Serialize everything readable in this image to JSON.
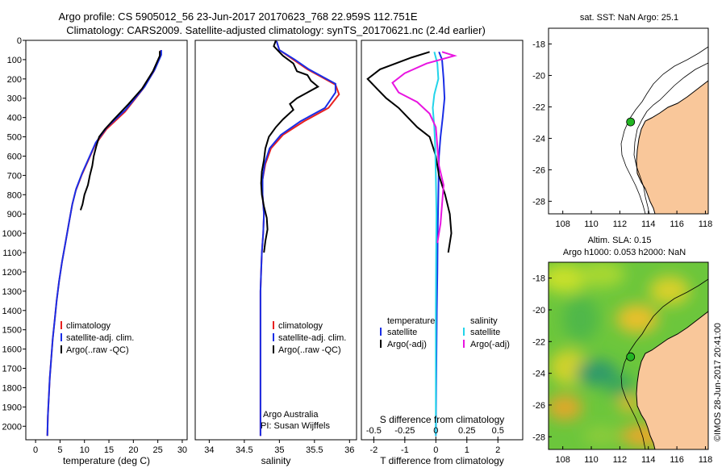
{
  "header": {
    "title_line1": "Argo profile: CS 5905012_56 23-Jun-2017 20170623_768 22.959S 112.751E",
    "title_line2": "Climatology: CARS2009. Satellite-adjusted climatology: synTS_20170621.nc (2.4d earlier)"
  },
  "colors": {
    "climatology": "#e8201f",
    "satellite": "#1a2ee6",
    "argo": "#000000",
    "argo_salinity": "#e815e0",
    "satellite_salinity": "#22d4ea",
    "land": "#f9c79a",
    "float_marker": "#22b522"
  },
  "chart_data": [
    {
      "id": "temperature",
      "type": "line",
      "xlabel": "temperature (deg C)",
      "ylabel": "",
      "xlim": [
        -2,
        31
      ],
      "ylim": [
        0,
        2070
      ],
      "y_reversed": true,
      "xticks": [
        0,
        5,
        10,
        15,
        20,
        25,
        30
      ],
      "yticks": [
        0,
        100,
        200,
        300,
        400,
        500,
        600,
        700,
        800,
        900,
        1000,
        1100,
        1200,
        1300,
        1400,
        1500,
        1600,
        1700,
        1800,
        1900,
        2000
      ],
      "legend": {
        "placement": "lower-center",
        "entries": [
          "climatology",
          "satellite-adj. clim.",
          "Argo(..raw -QC)"
        ]
      },
      "series": [
        {
          "name": "climatology",
          "color": "#e8201f",
          "points": [
            [
              25.6,
              50
            ],
            [
              25.6,
              75
            ],
            [
              24.2,
              160
            ],
            [
              22,
              250
            ],
            [
              18.3,
              370
            ],
            [
              14.5,
              460
            ],
            [
              12.2,
              540
            ],
            [
              10.8,
              620
            ],
            [
              9.4,
              700
            ],
            [
              8.2,
              780
            ],
            [
              7.5,
              850
            ],
            [
              6.8,
              950
            ],
            [
              6.1,
              1050
            ],
            [
              5.4,
              1150
            ],
            [
              4.8,
              1250
            ],
            [
              4.3,
              1350
            ],
            [
              3.9,
              1450
            ],
            [
              3.5,
              1550
            ],
            [
              3.2,
              1650
            ],
            [
              2.9,
              1750
            ],
            [
              2.7,
              1850
            ],
            [
              2.5,
              1950
            ],
            [
              2.4,
              2050
            ]
          ]
        },
        {
          "name": "satellite-adj. clim.",
          "color": "#1a2ee6",
          "points": [
            [
              25.7,
              50
            ],
            [
              25.7,
              75
            ],
            [
              24.4,
              150
            ],
            [
              22.3,
              240
            ],
            [
              18.4,
              360
            ],
            [
              14.6,
              450
            ],
            [
              12.3,
              530
            ],
            [
              10.9,
              610
            ],
            [
              9.5,
              690
            ],
            [
              8.3,
              770
            ],
            [
              7.5,
              850
            ],
            [
              6.8,
              950
            ],
            [
              6.1,
              1050
            ],
            [
              5.4,
              1150
            ],
            [
              4.8,
              1250
            ],
            [
              4.3,
              1350
            ],
            [
              3.9,
              1450
            ],
            [
              3.5,
              1550
            ],
            [
              3.2,
              1650
            ],
            [
              2.9,
              1750
            ],
            [
              2.7,
              1850
            ],
            [
              2.5,
              1950
            ],
            [
              2.4,
              2050
            ]
          ]
        },
        {
          "name": "Argo(..raw -QC)",
          "color": "#000000",
          "points": [
            [
              25.4,
              55
            ],
            [
              25.4,
              80
            ],
            [
              24.0,
              160
            ],
            [
              21.8,
              250
            ],
            [
              19.0,
              330
            ],
            [
              16.0,
              410
            ],
            [
              14.2,
              460
            ],
            [
              13.0,
              500
            ],
            [
              12.4,
              550
            ],
            [
              11.9,
              600
            ],
            [
              11.6,
              650
            ],
            [
              11.1,
              700
            ],
            [
              10.7,
              750
            ],
            [
              10.0,
              800
            ],
            [
              9.6,
              850
            ],
            [
              9.2,
              880
            ]
          ]
        }
      ]
    },
    {
      "id": "salinity",
      "type": "line",
      "xlabel": "salinity",
      "ylabel": "",
      "xlim": [
        33.8,
        36.1
      ],
      "ylim": [
        0,
        2070
      ],
      "y_reversed": true,
      "xticks": [
        34,
        34.5,
        35,
        35.5,
        36
      ],
      "legend": {
        "placement": "lower-center",
        "entries": [
          "climatology",
          "satellite-adj. clim.",
          "Argo(..raw -QC)"
        ]
      },
      "annotations": [
        "Argo Australia",
        "PI: Susan Wijffels"
      ],
      "series": [
        {
          "name": "climatology",
          "color": "#e8201f",
          "points": [
            [
              34.96,
              5
            ],
            [
              35.0,
              50
            ],
            [
              35.2,
              100
            ],
            [
              35.4,
              150
            ],
            [
              35.6,
              190
            ],
            [
              35.8,
              230
            ],
            [
              35.85,
              280
            ],
            [
              35.7,
              350
            ],
            [
              35.35,
              420
            ],
            [
              35.05,
              490
            ],
            [
              34.88,
              560
            ],
            [
              34.8,
              640
            ],
            [
              34.76,
              720
            ],
            [
              34.76,
              800
            ],
            [
              34.78,
              900
            ],
            [
              34.77,
              1000
            ],
            [
              34.75,
              1100
            ],
            [
              34.74,
              1200
            ],
            [
              34.73,
              1300
            ],
            [
              34.73,
              1400
            ],
            [
              34.73,
              1500
            ],
            [
              34.73,
              1600
            ],
            [
              34.73,
              1700
            ],
            [
              34.73,
              1800
            ],
            [
              34.73,
              1900
            ],
            [
              34.73,
              2050
            ]
          ]
        },
        {
          "name": "satellite-adj. clim.",
          "color": "#1a2ee6",
          "points": [
            [
              34.96,
              5
            ],
            [
              35.0,
              50
            ],
            [
              35.22,
              100
            ],
            [
              35.42,
              150
            ],
            [
              35.62,
              190
            ],
            [
              35.8,
              225
            ],
            [
              35.8,
              270
            ],
            [
              35.65,
              350
            ],
            [
              35.3,
              420
            ],
            [
              35.02,
              490
            ],
            [
              34.86,
              560
            ],
            [
              34.79,
              640
            ],
            [
              34.76,
              720
            ],
            [
              34.76,
              800
            ],
            [
              34.78,
              900
            ],
            [
              34.77,
              1000
            ],
            [
              34.75,
              1100
            ],
            [
              34.74,
              1200
            ],
            [
              34.73,
              1300
            ],
            [
              34.73,
              1400
            ],
            [
              34.73,
              1500
            ],
            [
              34.73,
              1600
            ],
            [
              34.73,
              1700
            ],
            [
              34.73,
              1800
            ],
            [
              34.73,
              1900
            ],
            [
              34.73,
              2050
            ]
          ]
        },
        {
          "name": "Argo(..raw -QC)",
          "color": "#000000",
          "points": [
            [
              34.95,
              0
            ],
            [
              34.92,
              30
            ],
            [
              35.05,
              80
            ],
            [
              35.2,
              120
            ],
            [
              35.25,
              160
            ],
            [
              35.4,
              180
            ],
            [
              35.45,
              210
            ],
            [
              35.55,
              240
            ],
            [
              35.4,
              270
            ],
            [
              35.25,
              300
            ],
            [
              35.15,
              330
            ],
            [
              35.2,
              360
            ],
            [
              35.05,
              410
            ],
            [
              34.95,
              450
            ],
            [
              34.85,
              500
            ],
            [
              34.8,
              560
            ],
            [
              34.78,
              620
            ],
            [
              34.75,
              680
            ],
            [
              34.74,
              740
            ],
            [
              34.75,
              800
            ],
            [
              34.78,
              860
            ],
            [
              34.82,
              920
            ],
            [
              34.83,
              980
            ],
            [
              34.8,
              1040
            ],
            [
              34.78,
              1100
            ]
          ]
        }
      ]
    },
    {
      "id": "differences",
      "type": "line",
      "xlabel": "T difference from climatology",
      "x2label": "S difference from climatology",
      "ylabel": "",
      "xlim": [
        -2.4,
        2.8
      ],
      "ylim": [
        0,
        2070
      ],
      "y_reversed": true,
      "xticks": [
        -2,
        -1,
        0,
        1,
        2
      ],
      "x2ticks": [
        -0.5,
        -0.25,
        0,
        0.25,
        0.5
      ],
      "x2ticklabels": [
        "-0.5",
        "-0.25",
        "0",
        "0.25",
        "0.5"
      ],
      "legend": {
        "placement": "lower-center",
        "temperature_header": "temperature",
        "salinity_header": "salinity",
        "entries": [
          "satellite",
          "Argo(-adj)",
          "satellite",
          "Argo(-adj)"
        ]
      },
      "series": [
        {
          "name": "temperature satellite",
          "color": "#1a2ee6",
          "points": [
            [
              0.1,
              60
            ],
            [
              0.2,
              100
            ],
            [
              0.25,
              200
            ],
            [
              0.28,
              300
            ],
            [
              0.22,
              400
            ],
            [
              0.15,
              500
            ],
            [
              0.1,
              600
            ],
            [
              0.08,
              800
            ],
            [
              0.06,
              1000
            ],
            [
              0.05,
              1200
            ],
            [
              0.03,
              1400
            ],
            [
              0.02,
              1600
            ],
            [
              0.01,
              1800
            ],
            [
              0,
              2050
            ]
          ]
        },
        {
          "name": "temperature Argo(-adj)",
          "color": "#000000",
          "points": [
            [
              -0.2,
              60
            ],
            [
              -0.8,
              90
            ],
            [
              -1.8,
              150
            ],
            [
              -2.2,
              200
            ],
            [
              -1.9,
              250
            ],
            [
              -1.6,
              300
            ],
            [
              -1.2,
              350
            ],
            [
              -0.9,
              400
            ],
            [
              -0.6,
              450
            ],
            [
              -0.2,
              500
            ],
            [
              -0.1,
              550
            ],
            [
              0,
              600
            ],
            [
              0.1,
              700
            ],
            [
              0.3,
              800
            ],
            [
              0.45,
              900
            ],
            [
              0.5,
              1000
            ],
            [
              0.45,
              1050
            ],
            [
              0.4,
              1100
            ]
          ]
        },
        {
          "name": "salinity satellite",
          "color": "#22d4ea",
          "points": [
            [
              -0.05,
              60
            ],
            [
              0.05,
              120
            ],
            [
              0.08,
              200
            ],
            [
              -0.05,
              280
            ],
            [
              -0.1,
              350
            ],
            [
              -0.05,
              450
            ],
            [
              -0.02,
              550
            ],
            [
              0,
              700
            ],
            [
              0.02,
              900
            ],
            [
              0.01,
              1100
            ],
            [
              0,
              1400
            ],
            [
              0,
              2050
            ]
          ]
        },
        {
          "name": "salinity Argo(-adj)",
          "color": "#e815e0",
          "points": [
            [
              0.2,
              60
            ],
            [
              0.6,
              80
            ],
            [
              -0.3,
              120
            ],
            [
              -1.0,
              170
            ],
            [
              -1.4,
              220
            ],
            [
              -1.2,
              270
            ],
            [
              -0.6,
              320
            ],
            [
              -0.2,
              380
            ],
            [
              0,
              450
            ],
            [
              0.05,
              550
            ],
            [
              0.1,
              650
            ],
            [
              0.25,
              750
            ],
            [
              0.2,
              850
            ],
            [
              0.15,
              950
            ],
            [
              0.05,
              1050
            ]
          ]
        }
      ]
    },
    {
      "id": "sst-map",
      "type": "scatter",
      "title": "sat. SST: NaN Argo: 25.1",
      "xlim": [
        107,
        118.2
      ],
      "ylim": [
        -28.8,
        -17
      ],
      "xticks": [
        108,
        110,
        112,
        114,
        116,
        118
      ],
      "yticks": [
        -18,
        -20,
        -22,
        -24,
        -26,
        -28
      ],
      "float_position": [
        112.751,
        -22.959
      ]
    },
    {
      "id": "sla-map",
      "type": "heatmap",
      "title_line1": "Altim. SLA: 0.15",
      "title_line2": "Argo h1000: 0.053 h2000: NaN",
      "xlim": [
        107,
        118.2
      ],
      "ylim": [
        -28.8,
        -17
      ],
      "xticks": [
        108,
        110,
        112,
        114,
        116,
        118
      ],
      "yticks": [
        -18,
        -20,
        -22,
        -24,
        -26,
        -28
      ],
      "float_position": [
        112.751,
        -22.959
      ]
    }
  ],
  "credit": "©IMOS 28-Jun-2017 20:41:00"
}
